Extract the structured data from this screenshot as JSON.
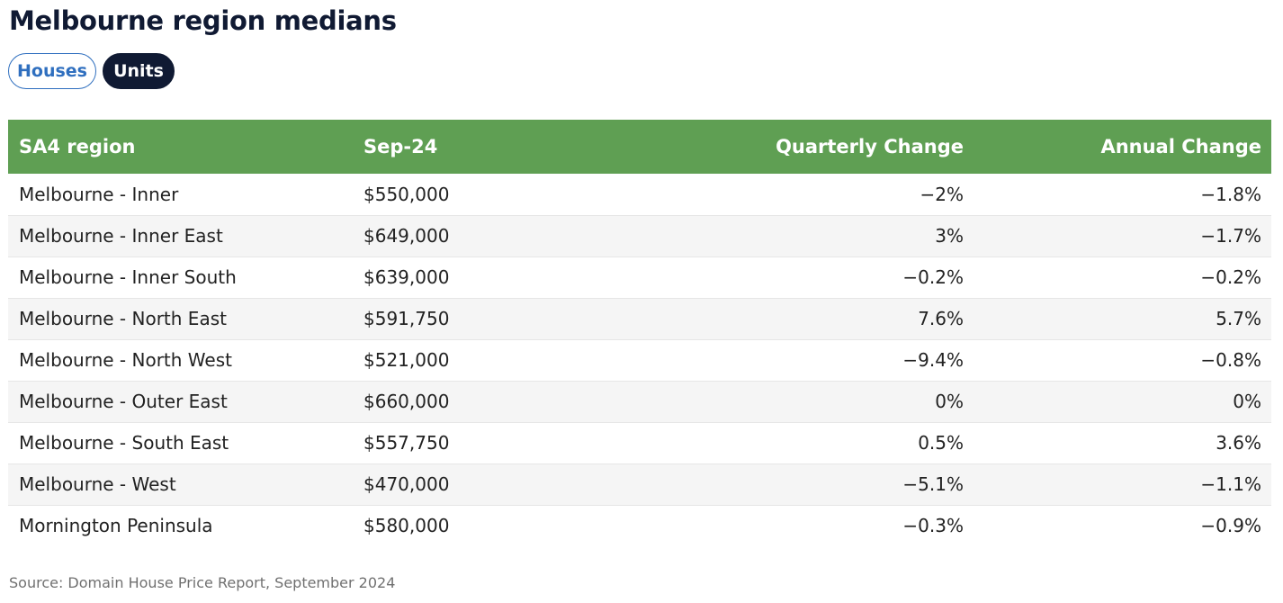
{
  "page": {
    "title": "Melbourne region medians",
    "toggles": {
      "houses": "Houses",
      "units": "Units",
      "selected": "Units"
    },
    "source": "Source: Domain House Price Report, September 2024"
  },
  "colors": {
    "header_bg": "#5f9f53",
    "selected_toggle_bg": "#101a33",
    "unselected_toggle_text": "#2f6fbf",
    "title": "#101a33"
  },
  "chart_data": {
    "type": "table",
    "title": "Melbourne region medians",
    "columns": [
      "SA4 region",
      "Sep-24",
      "Quarterly Change",
      "Annual Change"
    ],
    "rows": [
      [
        "Melbourne - Inner",
        "$550,000",
        "−2%",
        "−1.8%"
      ],
      [
        "Melbourne - Inner East",
        "$649,000",
        "3%",
        "−1.7%"
      ],
      [
        "Melbourne - Inner South",
        "$639,000",
        "−0.2%",
        "−0.2%"
      ],
      [
        "Melbourne - North East",
        "$591,750",
        "7.6%",
        "5.7%"
      ],
      [
        "Melbourne - North West",
        "$521,000",
        "−9.4%",
        "−0.8%"
      ],
      [
        "Melbourne - Outer East",
        "$660,000",
        "0%",
        "0%"
      ],
      [
        "Melbourne - South East",
        "$557,750",
        "0.5%",
        "3.6%"
      ],
      [
        "Melbourne - West",
        "$470,000",
        "−5.1%",
        "−1.1%"
      ],
      [
        "Mornington Peninsula",
        "$580,000",
        "−0.3%",
        "−0.9%"
      ]
    ]
  }
}
